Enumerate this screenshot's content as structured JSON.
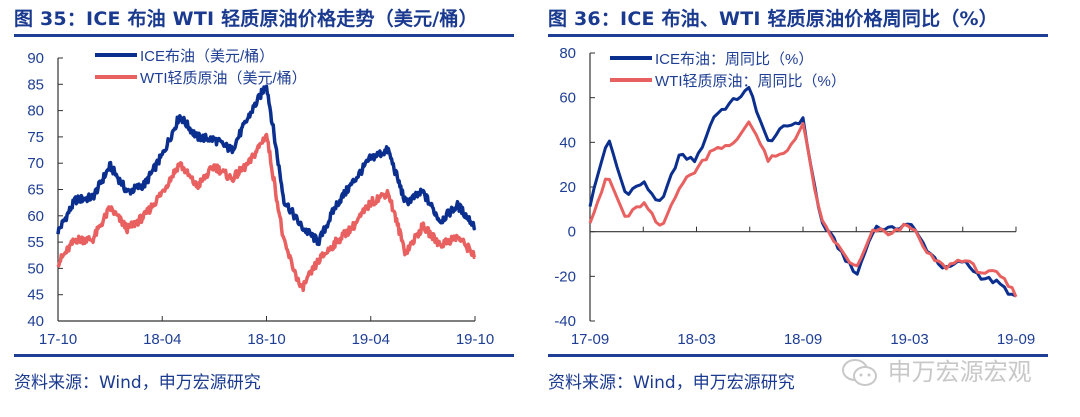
{
  "left": {
    "title": "图 35：ICE 布油 WTI 轻质原油价格走势（美元/桶）",
    "source": "资料来源：Wind，申万宏源研究"
  },
  "right": {
    "title": "图 36：ICE 布油、WTI 轻质原油价格周同比（%）",
    "source": "资料来源：Wind，申万宏源研究"
  },
  "watermark": {
    "text": "申万宏源宏观",
    "icon": "wechat-icon"
  },
  "colors": {
    "title": "#1a3a8f",
    "ice": "#0b2f8f",
    "wti": "#e8605f",
    "axis": "#333333",
    "tick_label": "#1f3f94"
  },
  "chart_data": [
    {
      "type": "line",
      "title": "图 35：ICE 布油 WTI 轻质原油价格走势（美元/桶）",
      "xlabel": "",
      "ylabel": "",
      "ylim": [
        40,
        90
      ],
      "yticks": [
        40,
        45,
        50,
        55,
        60,
        65,
        70,
        75,
        80,
        85,
        90
      ],
      "xticks": [
        "17-10",
        "18-04",
        "18-10",
        "19-04",
        "19-10"
      ],
      "grid": false,
      "legend_position": "top-left",
      "x": [
        "17-10",
        "17-11",
        "17-12",
        "18-01",
        "18-02",
        "18-03",
        "18-04",
        "18-05",
        "18-06",
        "18-07",
        "18-08",
        "18-09",
        "18-10",
        "18-11",
        "18-12",
        "19-01",
        "19-02",
        "19-03",
        "19-04",
        "19-05",
        "19-06",
        "19-07",
        "19-08",
        "19-09",
        "19-10"
      ],
      "series": [
        {
          "name": "ICE布油（美元/桶）",
          "color": "#0b2f8f",
          "values": [
            57,
            63,
            63.5,
            69.5,
            64.5,
            66,
            71.5,
            79,
            75,
            74.5,
            72.5,
            79,
            85,
            63,
            58,
            55,
            62,
            66.5,
            71,
            72.5,
            62.5,
            64.5,
            59,
            62,
            58
          ]
        },
        {
          "name": "WTI轻质原油（美元/桶）",
          "color": "#e8605f",
          "values": [
            51,
            55.5,
            55.5,
            61.5,
            57.5,
            60,
            64.5,
            70,
            65.5,
            69.5,
            67,
            70,
            75.5,
            55,
            46,
            51.5,
            55,
            58,
            62.5,
            64.5,
            53,
            58,
            54.5,
            56,
            52.5
          ]
        }
      ]
    },
    {
      "type": "line",
      "title": "图 36：ICE 布油、WTI 轻质原油价格周同比（%）",
      "xlabel": "",
      "ylabel": "",
      "ylim": [
        -40,
        80
      ],
      "yticks": [
        -40,
        -20,
        0,
        20,
        40,
        60,
        80
      ],
      "xticks": [
        "17-09",
        "18-03",
        "18-09",
        "19-03",
        "19-09"
      ],
      "grid": false,
      "legend_position": "top-left",
      "x": [
        "17-09",
        "17-10",
        "17-11",
        "17-12",
        "18-01",
        "18-02",
        "18-03",
        "18-04",
        "18-05",
        "18-06",
        "18-07",
        "18-08",
        "18-09",
        "18-10",
        "18-11",
        "18-12",
        "19-01",
        "19-02",
        "19-03",
        "19-04",
        "19-05",
        "19-06",
        "19-07",
        "19-08",
        "19-09"
      ],
      "series": [
        {
          "name": "ICE布油：周同比（%）",
          "color": "#0b2f8f",
          "values": [
            12,
            42,
            17,
            22,
            12,
            34,
            32,
            52,
            58,
            64,
            40,
            47,
            50,
            5,
            -7,
            -20,
            2,
            1,
            4,
            -8,
            -17,
            -13,
            -20,
            -23,
            -30
          ]
        },
        {
          "name": "WTI轻质原油：周同比（%）",
          "color": "#e8605f",
          "values": [
            5,
            25,
            6,
            13,
            1,
            20,
            28,
            38,
            38,
            50,
            32,
            35,
            48,
            5,
            -7,
            -17,
            1,
            -1,
            4,
            -10,
            -16,
            -12,
            -18,
            -19,
            -28
          ]
        }
      ]
    }
  ]
}
